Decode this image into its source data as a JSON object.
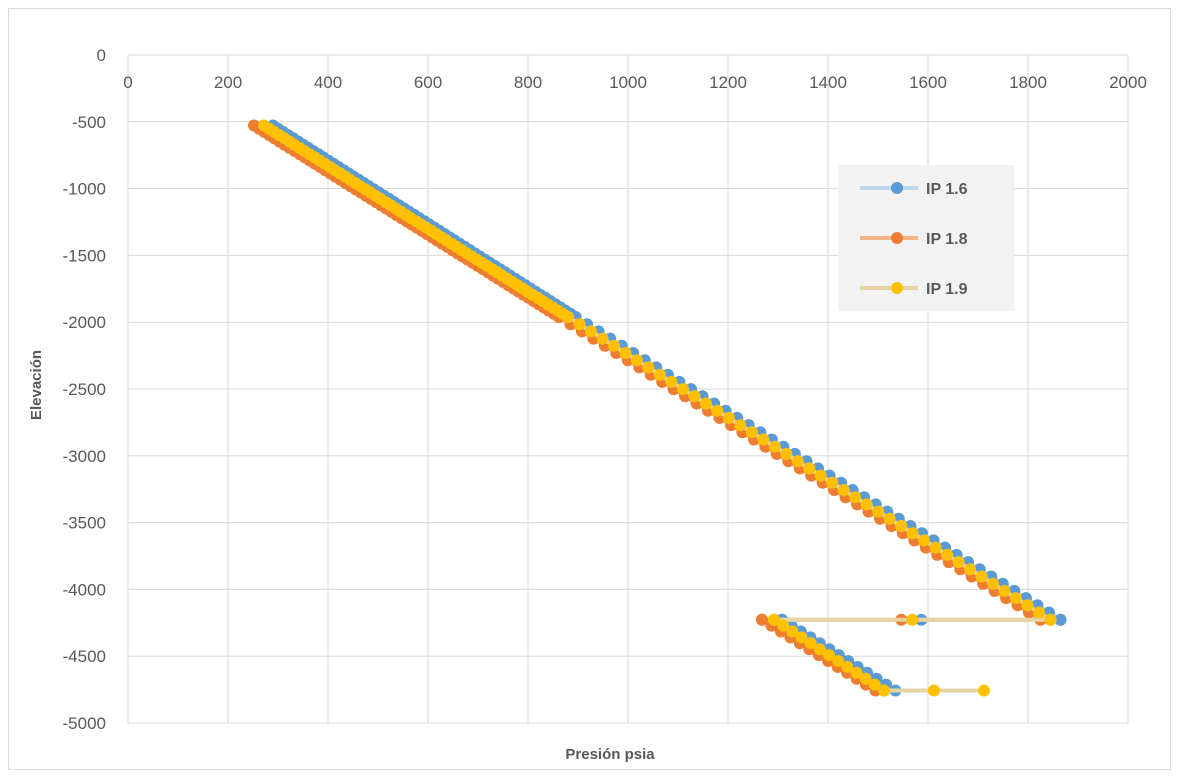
{
  "chart_data": {
    "type": "scatter",
    "title": "",
    "xlabel": "Presión psia",
    "ylabel": "Elevación",
    "xlim": [
      0,
      2000
    ],
    "ylim": [
      -5000,
      0
    ],
    "x_ticks": [
      0,
      200,
      400,
      600,
      800,
      1000,
      1200,
      1400,
      1600,
      1800,
      2000
    ],
    "y_ticks": [
      0,
      -500,
      -1000,
      -1500,
      -2000,
      -2500,
      -3000,
      -3500,
      -4000,
      -4500,
      -5000
    ],
    "x_axis_position": "top",
    "grid": true,
    "legend_position": "right",
    "series": [
      {
        "name": "IP 1.6",
        "color": "#5b9bd5",
        "line_color": "#bdd7ee",
        "segments": [
          {
            "x_start": 290,
            "x_end": 895,
            "y_start": -528,
            "y_end": -1961,
            "n": 60
          },
          {
            "x_start": 895,
            "x_end": 1865,
            "y_start": -1961,
            "y_end": -4227,
            "n": 42
          },
          {
            "x_start": 1865,
            "x_end": 1308,
            "y_start": -4227,
            "y_end": -4227,
            "n": 2
          },
          {
            "x_start": 1308,
            "x_end": 1535,
            "y_start": -4227,
            "y_end": -4757,
            "n": 12
          }
        ]
      },
      {
        "name": "IP 1.8",
        "color": "#ed7d31",
        "line_color": "#f4b183",
        "segments": [
          {
            "x_start": 252,
            "x_end": 862,
            "y_start": -528,
            "y_end": -1961,
            "n": 60
          },
          {
            "x_start": 862,
            "x_end": 1825,
            "y_start": -1961,
            "y_end": -4227,
            "n": 42
          },
          {
            "x_start": 1825,
            "x_end": 1268,
            "y_start": -4227,
            "y_end": -4227,
            "n": 2
          },
          {
            "x_start": 1268,
            "x_end": 1495,
            "y_start": -4227,
            "y_end": -4757,
            "n": 12
          }
        ]
      },
      {
        "name": "IP 1.9",
        "color": "#ffc000",
        "line_color": "#e7d4a4",
        "segments": [
          {
            "x_start": 272,
            "x_end": 880,
            "y_start": -528,
            "y_end": -1961,
            "n": 60
          },
          {
            "x_start": 880,
            "x_end": 1845,
            "y_start": -1961,
            "y_end": -4227,
            "n": 42
          },
          {
            "x_start": 1845,
            "x_end": 1292,
            "y_start": -4227,
            "y_end": -4227,
            "n": 2
          },
          {
            "x_start": 1292,
            "x_end": 1512,
            "y_start": -4227,
            "y_end": -4757,
            "n": 12
          },
          {
            "x_start": 1512,
            "x_end": 1712,
            "y_start": -4757,
            "y_end": -4757,
            "n": 2
          }
        ]
      }
    ]
  }
}
